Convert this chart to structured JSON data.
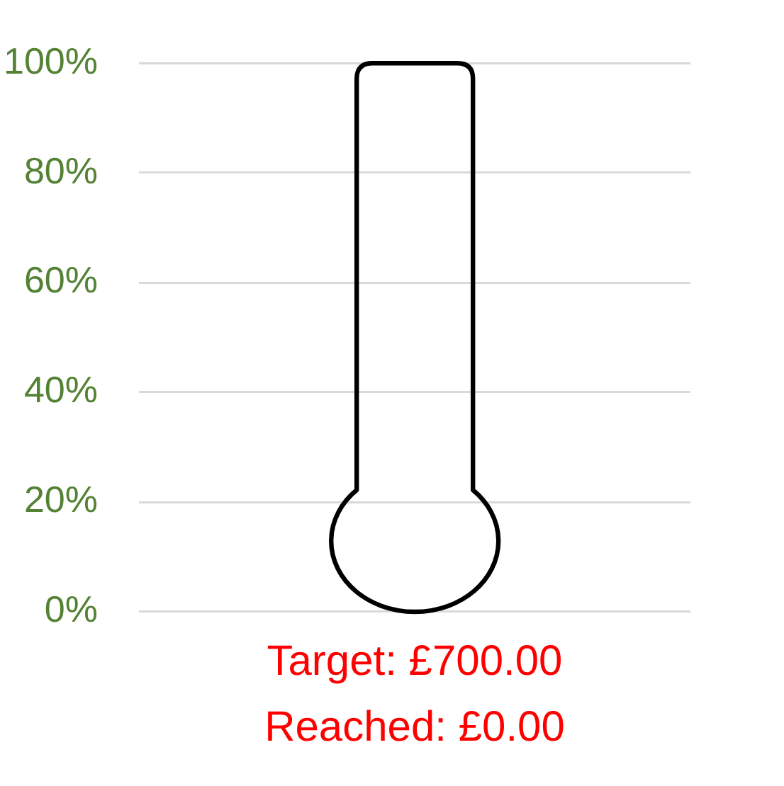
{
  "chart_data": {
    "type": "bar",
    "categories": [
      "Target: £700.00\nReached: £0.00"
    ],
    "values": [
      0
    ],
    "ylim": [
      0,
      100
    ],
    "yticks": [
      {
        "value": 0,
        "label": "0%"
      },
      {
        "value": 20,
        "label": "20%"
      },
      {
        "value": 40,
        "label": "40%"
      },
      {
        "value": 60,
        "label": "60%"
      },
      {
        "value": 80,
        "label": "80%"
      },
      {
        "value": 100,
        "label": "100%"
      }
    ],
    "grid": "y"
  }
}
